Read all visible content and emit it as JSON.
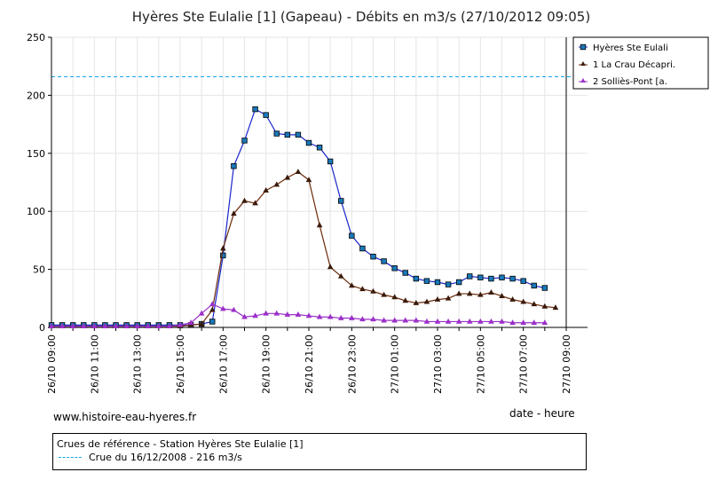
{
  "chart_data": {
    "type": "line",
    "title": "Hyères Ste Eulalie [1] (Gapeau) - Débits en m3/s (27/10/2012 09:05)",
    "xlabel": "date - heure",
    "ylim": [
      0,
      250
    ],
    "yticks": [
      0,
      50,
      100,
      150,
      200,
      250
    ],
    "xlim": [
      0,
      48
    ],
    "x_tick_hours": [
      0,
      2,
      4,
      6,
      8,
      10,
      12,
      14,
      16,
      18,
      20,
      22,
      24
    ],
    "x_tick_labels": [
      "26/10 09:00",
      "26/10 11:00",
      "26/10 13:00",
      "26/10 15:00",
      "26/10 17:00",
      "26/10 19:00",
      "26/10 21:00",
      "26/10 23:00",
      "27/10 01:00",
      "27/10 03:00",
      "27/10 05:00",
      "27/10 07:00",
      "27/10 09:00"
    ],
    "series": [
      {
        "name": "Hyères Ste Eulali",
        "color": "#1a26c8",
        "marker": "square",
        "marker_fill": "#1a78b8",
        "x": [
          0,
          0.5,
          1,
          1.5,
          2,
          2.5,
          3,
          3.5,
          4,
          4.5,
          5,
          5.5,
          6,
          6.5,
          7,
          7.5,
          8,
          8.5,
          9,
          9.5,
          10,
          10.5,
          11,
          11.5,
          12,
          12.5,
          13,
          13.5,
          14,
          14.5,
          15,
          15.5,
          16,
          16.5,
          17,
          17.5,
          18,
          18.5,
          19,
          19.5,
          20,
          20.5,
          21,
          21.5,
          22,
          22.5,
          23
        ],
        "values": [
          2,
          2,
          2,
          2,
          2,
          2,
          2,
          2,
          2,
          2,
          2,
          2,
          2,
          2,
          3,
          5,
          62,
          139,
          161,
          188,
          183,
          167,
          166,
          166,
          159,
          155,
          143,
          109,
          79,
          68,
          61,
          57,
          51,
          47,
          42,
          40,
          39,
          37,
          39,
          44,
          43,
          42,
          43,
          42,
          40,
          36,
          34
        ]
      },
      {
        "name": "1 La Crau Décapri.",
        "color": "#6b2a0a",
        "marker": "triangle",
        "marker_fill": "#3a1a0a",
        "x": [
          0,
          0.5,
          1,
          1.5,
          2,
          2.5,
          3,
          3.5,
          4,
          4.5,
          5,
          5.5,
          6,
          6.5,
          7,
          7.5,
          8,
          8.5,
          9,
          9.5,
          10,
          10.5,
          11,
          11.5,
          12,
          12.5,
          13,
          13.5,
          14,
          14.5,
          15,
          15.5,
          16,
          16.5,
          17,
          17.5,
          18,
          18.5,
          19,
          19.5,
          20,
          20.5,
          21,
          21.5,
          22,
          22.5,
          23,
          23.5
        ],
        "values": [
          1,
          1,
          1,
          1,
          1,
          1,
          1,
          1,
          1,
          1,
          1,
          1,
          1,
          2,
          3,
          15,
          68,
          98,
          109,
          107,
          118,
          123,
          129,
          134,
          127,
          88,
          52,
          44,
          36,
          33,
          31,
          28,
          26,
          23,
          21,
          22,
          24,
          25,
          29,
          29,
          28,
          30,
          27,
          24,
          22,
          20,
          18,
          17
        ]
      },
      {
        "name": "2 Solliès-Pont [a.",
        "color": "#9b30c8",
        "marker": "triangle",
        "marker_fill": "#9b30c8",
        "x": [
          0,
          0.5,
          1,
          1.5,
          2,
          2.5,
          3,
          3.5,
          4,
          4.5,
          5,
          5.5,
          6,
          6.5,
          7,
          7.5,
          8,
          8.5,
          9,
          9.5,
          10,
          10.5,
          11,
          11.5,
          12,
          12.5,
          13,
          13.5,
          14,
          14.5,
          15,
          15.5,
          16,
          16.5,
          17,
          17.5,
          18,
          18.5,
          19,
          19.5,
          20,
          20.5,
          21,
          21.5,
          22,
          22.5,
          23
        ],
        "values": [
          1,
          1,
          1,
          1,
          1,
          1,
          1,
          1,
          1,
          1,
          1,
          1,
          2,
          4,
          12,
          20,
          16,
          15,
          9,
          10,
          12,
          12,
          11,
          11,
          10,
          9,
          9,
          8,
          8,
          7,
          7,
          6,
          6,
          6,
          6,
          5,
          5,
          5,
          5,
          5,
          5,
          5,
          5,
          4,
          4,
          4,
          4
        ]
      }
    ],
    "reference_line": {
      "value": 216,
      "color": "#1aa7ec",
      "style": "dashed"
    },
    "grid": true,
    "legend_position": "top-right"
  },
  "footer": {
    "website": "www.histoire-eau-hyeres.fr",
    "reference_title": "Crues de référence - Station Hyères Ste Eulalie [1]",
    "reference_item": "Crue du 16/12/2008 - 216 m3/s"
  }
}
